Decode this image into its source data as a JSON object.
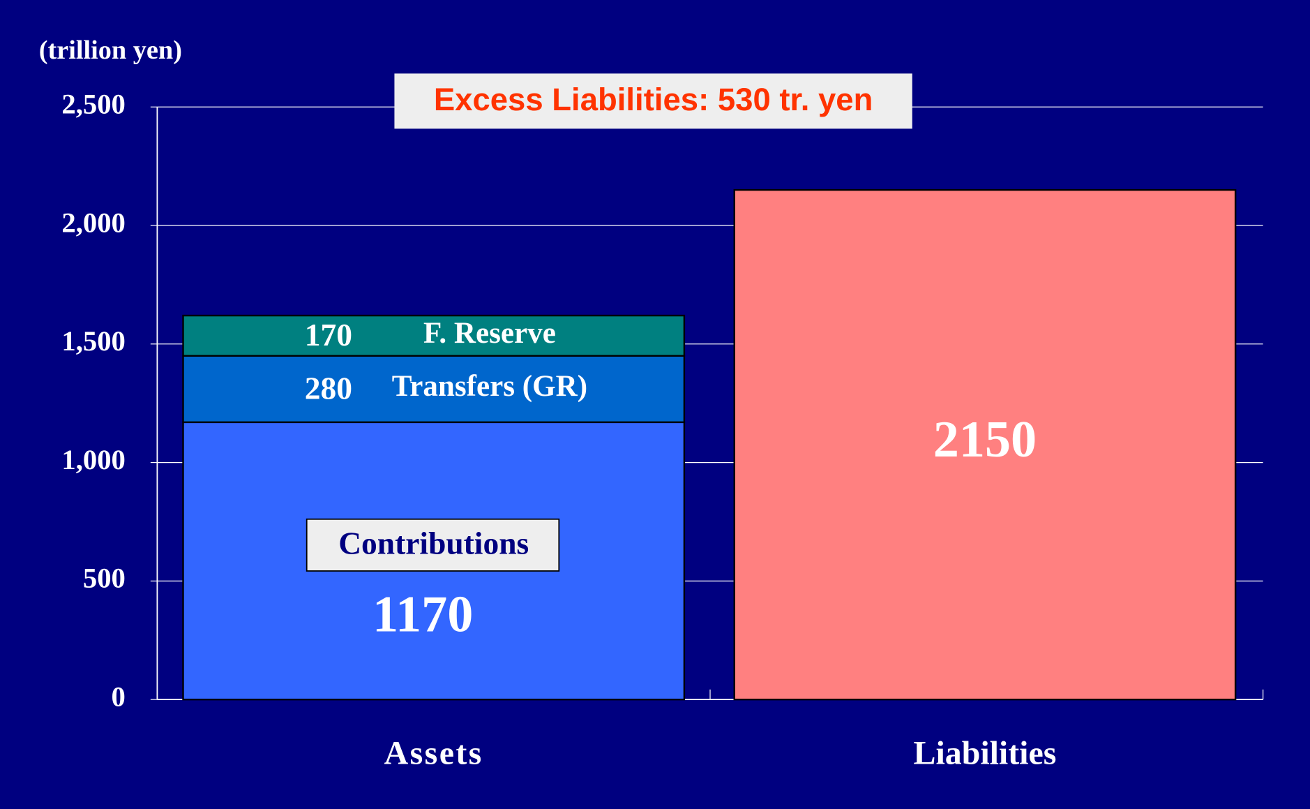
{
  "chart_data": {
    "type": "stacked_bar",
    "y_axis_label": "(trillion yen)",
    "annotation": "Excess Liabilities: 530 tr. yen",
    "categories": [
      "Assets",
      "Liabilities"
    ],
    "series": [
      {
        "name": "Contributions",
        "color": "#3366ff",
        "values": [
          1170,
          null
        ]
      },
      {
        "name": "Transfers (GR)",
        "color": "#0066cc",
        "values": [
          280,
          null
        ]
      },
      {
        "name": "F. Reserve",
        "color": "#008080",
        "values": [
          170,
          null
        ]
      },
      {
        "color": "#ff8080",
        "values": [
          null,
          2150
        ]
      }
    ],
    "ylim": [
      0,
      2500
    ],
    "yticks": [
      0,
      500,
      {
        "value": 1000,
        "label": "1,000"
      },
      {
        "value": 1500,
        "label": "1,500"
      },
      {
        "value": 2000,
        "label": "2,000"
      },
      {
        "value": 2500,
        "label": "2,500"
      }
    ],
    "grid": true
  }
}
